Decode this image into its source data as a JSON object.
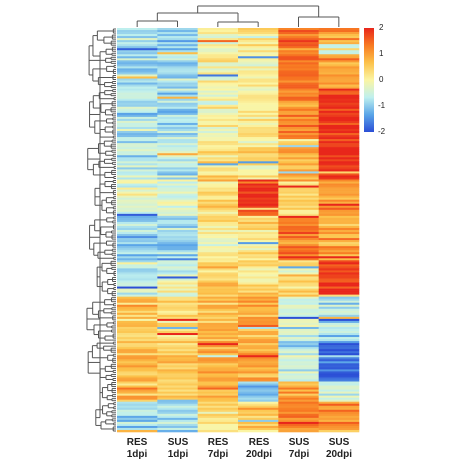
{
  "chart_data": {
    "type": "heatmap",
    "title": "",
    "xlabel": "",
    "ylabel": "",
    "columns": [
      {
        "line1": "RES",
        "line2": "1dpi"
      },
      {
        "line1": "SUS",
        "line2": "1dpi"
      },
      {
        "line1": "RES",
        "line2": "7dpi"
      },
      {
        "line1": "RES",
        "line2": "20dpi"
      },
      {
        "line1": "SUS",
        "line2": "7dpi"
      },
      {
        "line1": "SUS",
        "line2": "20dpi"
      }
    ],
    "color_scale": {
      "range": [
        -2,
        2
      ],
      "ticks": [
        "2",
        "1",
        "0",
        "-1",
        "-2"
      ],
      "colors": [
        "#2b4fd6",
        "#5aa5e8",
        "#bff0ee",
        "#fbf5a4",
        "#fcc24a",
        "#f87a22",
        "#e8261b"
      ]
    },
    "row_dendrogram": true,
    "column_dendrogram": true,
    "row_blocks": [
      {
        "rows": 30,
        "values": [
          -0.9,
          -0.9,
          -0.1,
          0.1,
          1.4,
          1.0
        ]
      },
      {
        "rows": 25,
        "values": [
          -0.7,
          -0.8,
          0.0,
          0.2,
          1.2,
          1.9
        ]
      },
      {
        "rows": 20,
        "values": [
          -0.6,
          -0.7,
          0.3,
          0.2,
          0.7,
          2.0
        ]
      },
      {
        "rows": 18,
        "values": [
          -0.3,
          -0.4,
          0.4,
          1.9,
          0.4,
          1.2
        ]
      },
      {
        "rows": 22,
        "values": [
          -0.9,
          -0.9,
          0.1,
          0.2,
          1.3,
          0.9
        ]
      },
      {
        "rows": 18,
        "values": [
          -0.5,
          -0.3,
          0.5,
          0.4,
          0.3,
          1.9
        ]
      },
      {
        "rows": 22,
        "values": [
          0.5,
          0.4,
          0.7,
          0.8,
          -0.4,
          -0.8
        ]
      },
      {
        "rows": 20,
        "values": [
          0.8,
          0.6,
          1.0,
          0.9,
          -0.6,
          -1.7
        ]
      },
      {
        "rows": 10,
        "values": [
          0.7,
          0.5,
          0.7,
          -1.2,
          0.9,
          -0.6
        ]
      },
      {
        "rows": 15,
        "values": [
          -0.8,
          -0.8,
          0.2,
          0.6,
          1.3,
          1.1
        ]
      }
    ]
  }
}
